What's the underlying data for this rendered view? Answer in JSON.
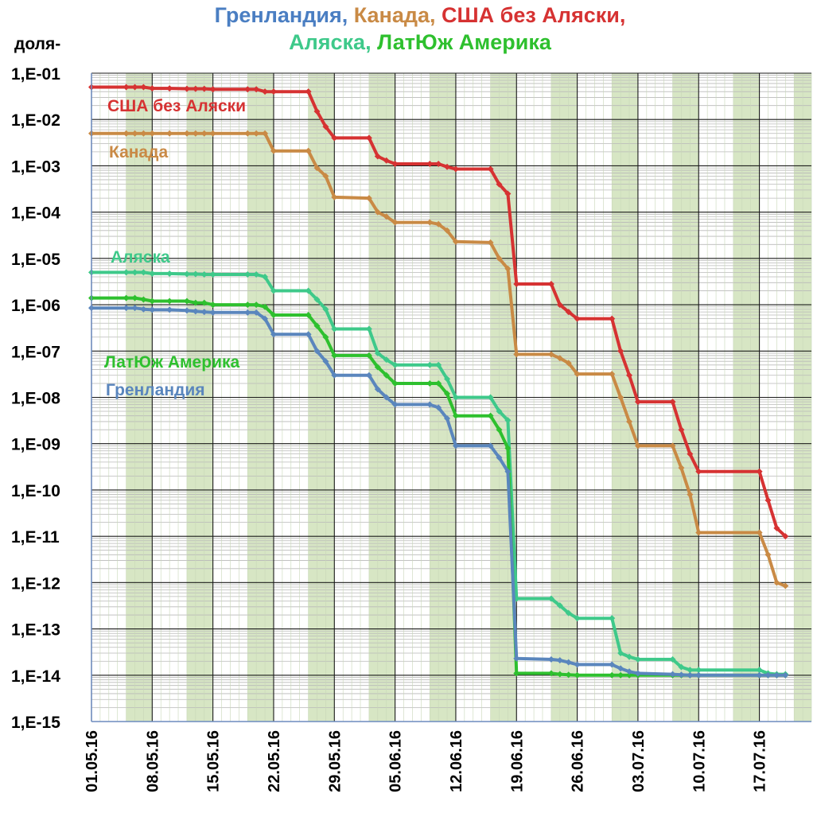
{
  "chart_data": {
    "type": "line",
    "title": {
      "line1": [
        {
          "text": "Гренландия",
          "color": "#4a7ec2"
        },
        {
          "text": ", ",
          "color": "#4a7ec2"
        },
        {
          "text": "Канада",
          "color": "#c98a45"
        },
        {
          "text": ", ",
          "color": "#c98a45"
        },
        {
          "text": "США без Аляски",
          "color": "#d63232"
        },
        {
          "text": ",",
          "color": "#d63232"
        }
      ],
      "line2": [
        {
          "text": "Аляска",
          "color": "#3ec98a"
        },
        {
          "text": ", ",
          "color": "#3ec98a"
        },
        {
          "text": "ЛатЮж Америка",
          "color": "#2ec02e"
        }
      ]
    },
    "ylabel": "доля-",
    "xlabel": "",
    "y_scale": "log",
    "ylim": [
      1e-15,
      0.1
    ],
    "xlim": [
      "2016-05-01",
      "2016-07-23"
    ],
    "y_ticks": [
      "1,E-01",
      "1,E-02",
      "1,E-03",
      "1,E-04",
      "1,E-05",
      "1,E-06",
      "1,E-07",
      "1,E-08",
      "1,E-09",
      "1,E-10",
      "1,E-11",
      "1,E-12",
      "1,E-13",
      "1,E-14",
      "1,E-15"
    ],
    "x_ticks": [
      "01.05.16",
      "08.05.16",
      "15.05.16",
      "22.05.16",
      "29.05.16",
      "05.06.16",
      "12.06.16",
      "19.06.16",
      "26.06.16",
      "03.07.16",
      "10.07.16",
      "17.07.16"
    ],
    "x_tick_dates": [
      "2016-05-01",
      "2016-05-08",
      "2016-05-15",
      "2016-05-22",
      "2016-05-29",
      "2016-06-05",
      "2016-06-12",
      "2016-06-19",
      "2016-06-26",
      "2016-07-03",
      "2016-07-10",
      "2016-07-17"
    ],
    "shaded_date_ranges": [
      [
        "2016-05-05",
        "2016-05-08"
      ],
      [
        "2016-05-12",
        "2016-05-15"
      ],
      [
        "2016-05-19",
        "2016-05-22"
      ],
      [
        "2016-05-26",
        "2016-05-29"
      ],
      [
        "2016-06-02",
        "2016-06-05"
      ],
      [
        "2016-06-09",
        "2016-06-12"
      ],
      [
        "2016-06-16",
        "2016-06-19"
      ],
      [
        "2016-06-23",
        "2016-06-26"
      ],
      [
        "2016-06-30",
        "2016-07-03"
      ],
      [
        "2016-07-07",
        "2016-07-10"
      ],
      [
        "2016-07-14",
        "2016-07-17"
      ],
      [
        "2016-07-21",
        "2016-07-23"
      ]
    ],
    "grid": true,
    "series": [
      {
        "name": "США без Аляски",
        "color": "#d63232",
        "points": [
          [
            "2016-05-01",
            0.05
          ],
          [
            "2016-05-05",
            0.05
          ],
          [
            "2016-05-06",
            0.05
          ],
          [
            "2016-05-07",
            0.05
          ],
          [
            "2016-05-08",
            0.047
          ],
          [
            "2016-05-10",
            0.047
          ],
          [
            "2016-05-12",
            0.046
          ],
          [
            "2016-05-13",
            0.046
          ],
          [
            "2016-05-14",
            0.046
          ],
          [
            "2016-05-15",
            0.045
          ],
          [
            "2016-05-19",
            0.045
          ],
          [
            "2016-05-20",
            0.045
          ],
          [
            "2016-05-21",
            0.04
          ],
          [
            "2016-05-22",
            0.04
          ],
          [
            "2016-05-26",
            0.04
          ],
          [
            "2016-05-27",
            0.015
          ],
          [
            "2016-05-28",
            0.007
          ],
          [
            "2016-05-29",
            0.004
          ],
          [
            "2016-06-02",
            0.004
          ],
          [
            "2016-06-03",
            0.0016
          ],
          [
            "2016-06-04",
            0.0013
          ],
          [
            "2016-06-05",
            0.0011
          ],
          [
            "2016-06-09",
            0.0011
          ],
          [
            "2016-06-10",
            0.0011
          ],
          [
            "2016-06-11",
            0.00095
          ],
          [
            "2016-06-12",
            0.00085
          ],
          [
            "2016-06-16",
            0.00085
          ],
          [
            "2016-06-17",
            0.0004
          ],
          [
            "2016-06-18",
            0.00025
          ],
          [
            "2016-06-19",
            2.8e-06
          ],
          [
            "2016-06-23",
            2.8e-06
          ],
          [
            "2016-06-24",
            1e-06
          ],
          [
            "2016-06-25",
            7e-07
          ],
          [
            "2016-06-26",
            5e-07
          ],
          [
            "2016-06-30",
            5e-07
          ],
          [
            "2016-07-01",
            1e-07
          ],
          [
            "2016-07-02",
            3e-08
          ],
          [
            "2016-07-03",
            8e-09
          ],
          [
            "2016-07-07",
            8e-09
          ],
          [
            "2016-07-08",
            2e-09
          ],
          [
            "2016-07-09",
            6e-10
          ],
          [
            "2016-07-10",
            2.5e-10
          ],
          [
            "2016-07-17",
            2.5e-10
          ],
          [
            "2016-07-18",
            6e-11
          ],
          [
            "2016-07-19",
            1.5e-11
          ],
          [
            "2016-07-20",
            1e-11
          ]
        ]
      },
      {
        "name": "Канада",
        "color": "#c98a45",
        "points": [
          [
            "2016-05-01",
            0.005
          ],
          [
            "2016-05-05",
            0.005
          ],
          [
            "2016-05-06",
            0.005
          ],
          [
            "2016-05-07",
            0.005
          ],
          [
            "2016-05-08",
            0.005
          ],
          [
            "2016-05-10",
            0.005
          ],
          [
            "2016-05-12",
            0.005
          ],
          [
            "2016-05-13",
            0.005
          ],
          [
            "2016-05-14",
            0.005
          ],
          [
            "2016-05-15",
            0.005
          ],
          [
            "2016-05-19",
            0.005
          ],
          [
            "2016-05-20",
            0.005
          ],
          [
            "2016-05-21",
            0.005
          ],
          [
            "2016-05-22",
            0.0021
          ],
          [
            "2016-05-26",
            0.0021
          ],
          [
            "2016-05-27",
            0.0009
          ],
          [
            "2016-05-28",
            0.0006
          ],
          [
            "2016-05-29",
            0.00021
          ],
          [
            "2016-06-02",
            0.0002
          ],
          [
            "2016-06-03",
            0.0001
          ],
          [
            "2016-06-04",
            8e-05
          ],
          [
            "2016-06-05",
            6e-05
          ],
          [
            "2016-06-09",
            6e-05
          ],
          [
            "2016-06-10",
            5.5e-05
          ],
          [
            "2016-06-11",
            4e-05
          ],
          [
            "2016-06-12",
            2.3e-05
          ],
          [
            "2016-06-16",
            2.2e-05
          ],
          [
            "2016-06-17",
            1e-05
          ],
          [
            "2016-06-18",
            6e-06
          ],
          [
            "2016-06-19",
            8.5e-08
          ],
          [
            "2016-06-23",
            8.5e-08
          ],
          [
            "2016-06-24",
            7e-08
          ],
          [
            "2016-06-25",
            5.5e-08
          ],
          [
            "2016-06-26",
            3.2e-08
          ],
          [
            "2016-06-30",
            3.2e-08
          ],
          [
            "2016-07-01",
            1e-08
          ],
          [
            "2016-07-02",
            3e-09
          ],
          [
            "2016-07-03",
            9e-10
          ],
          [
            "2016-07-07",
            9e-10
          ],
          [
            "2016-07-08",
            3e-10
          ],
          [
            "2016-07-09",
            8e-11
          ],
          [
            "2016-07-10",
            1.2e-11
          ],
          [
            "2016-07-17",
            1.2e-11
          ],
          [
            "2016-07-18",
            4e-12
          ],
          [
            "2016-07-19",
            1e-12
          ],
          [
            "2016-07-20",
            8.5e-13
          ]
        ]
      },
      {
        "name": "Аляска",
        "color": "#3ec98a",
        "points": [
          [
            "2016-05-01",
            5e-06
          ],
          [
            "2016-05-05",
            5e-06
          ],
          [
            "2016-05-06",
            5e-06
          ],
          [
            "2016-05-07",
            5e-06
          ],
          [
            "2016-05-08",
            4.7e-06
          ],
          [
            "2016-05-10",
            4.7e-06
          ],
          [
            "2016-05-12",
            4.6e-06
          ],
          [
            "2016-05-13",
            4.6e-06
          ],
          [
            "2016-05-14",
            4.5e-06
          ],
          [
            "2016-05-15",
            4.5e-06
          ],
          [
            "2016-05-19",
            4.5e-06
          ],
          [
            "2016-05-20",
            4.5e-06
          ],
          [
            "2016-05-21",
            4e-06
          ],
          [
            "2016-05-22",
            2e-06
          ],
          [
            "2016-05-26",
            2e-06
          ],
          [
            "2016-05-27",
            1.3e-06
          ],
          [
            "2016-05-28",
            8e-07
          ],
          [
            "2016-05-29",
            3e-07
          ],
          [
            "2016-06-02",
            3e-07
          ],
          [
            "2016-06-03",
            9e-08
          ],
          [
            "2016-06-04",
            6.5e-08
          ],
          [
            "2016-06-05",
            5e-08
          ],
          [
            "2016-06-09",
            5e-08
          ],
          [
            "2016-06-10",
            5e-08
          ],
          [
            "2016-06-11",
            2.5e-08
          ],
          [
            "2016-06-12",
            1e-08
          ],
          [
            "2016-06-16",
            1e-08
          ],
          [
            "2016-06-17",
            5e-09
          ],
          [
            "2016-06-18",
            3.2e-09
          ],
          [
            "2016-06-19",
            4.5e-13
          ],
          [
            "2016-06-23",
            4.5e-13
          ],
          [
            "2016-06-24",
            3.2e-13
          ],
          [
            "2016-06-25",
            2.2e-13
          ],
          [
            "2016-06-26",
            1.7e-13
          ],
          [
            "2016-06-30",
            1.7e-13
          ],
          [
            "2016-07-01",
            3e-14
          ],
          [
            "2016-07-02",
            2.5e-14
          ],
          [
            "2016-07-03",
            2.2e-14
          ],
          [
            "2016-07-07",
            2.2e-14
          ],
          [
            "2016-07-08",
            1.5e-14
          ],
          [
            "2016-07-09",
            1.3e-14
          ],
          [
            "2016-07-10",
            1.3e-14
          ],
          [
            "2016-07-17",
            1.3e-14
          ],
          [
            "2016-07-18",
            1.1e-14
          ],
          [
            "2016-07-19",
            1.05e-14
          ],
          [
            "2016-07-20",
            1.05e-14
          ]
        ]
      },
      {
        "name": "ЛатЮж Америка",
        "color": "#2ec02e",
        "points": [
          [
            "2016-05-01",
            1.4e-06
          ],
          [
            "2016-05-05",
            1.4e-06
          ],
          [
            "2016-05-06",
            1.4e-06
          ],
          [
            "2016-05-07",
            1.3e-06
          ],
          [
            "2016-05-08",
            1.2e-06
          ],
          [
            "2016-05-10",
            1.2e-06
          ],
          [
            "2016-05-12",
            1.2e-06
          ],
          [
            "2016-05-13",
            1.1e-06
          ],
          [
            "2016-05-14",
            1.1e-06
          ],
          [
            "2016-05-15",
            1e-06
          ],
          [
            "2016-05-19",
            1e-06
          ],
          [
            "2016-05-20",
            1e-06
          ],
          [
            "2016-05-21",
            9e-07
          ],
          [
            "2016-05-22",
            6e-07
          ],
          [
            "2016-05-26",
            6e-07
          ],
          [
            "2016-05-27",
            3.5e-07
          ],
          [
            "2016-05-28",
            2e-07
          ],
          [
            "2016-05-29",
            8e-08
          ],
          [
            "2016-06-02",
            8e-08
          ],
          [
            "2016-06-03",
            4.5e-08
          ],
          [
            "2016-06-04",
            3e-08
          ],
          [
            "2016-06-05",
            2e-08
          ],
          [
            "2016-06-09",
            2e-08
          ],
          [
            "2016-06-10",
            2e-08
          ],
          [
            "2016-06-11",
            1.2e-08
          ],
          [
            "2016-06-12",
            4e-09
          ],
          [
            "2016-06-16",
            4e-09
          ],
          [
            "2016-06-17",
            2e-09
          ],
          [
            "2016-06-18",
            8e-10
          ],
          [
            "2016-06-19",
            1.1e-14
          ],
          [
            "2016-06-23",
            1.1e-14
          ],
          [
            "2016-06-24",
            1.05e-14
          ],
          [
            "2016-06-25",
            1.02e-14
          ],
          [
            "2016-06-26",
            1e-14
          ],
          [
            "2016-06-30",
            1e-14
          ],
          [
            "2016-07-01",
            1e-14
          ],
          [
            "2016-07-02",
            1e-14
          ],
          [
            "2016-07-03",
            1e-14
          ],
          [
            "2016-07-07",
            1e-14
          ],
          [
            "2016-07-08",
            1e-14
          ],
          [
            "2016-07-09",
            1e-14
          ],
          [
            "2016-07-10",
            1e-14
          ],
          [
            "2016-07-17",
            1e-14
          ],
          [
            "2016-07-18",
            1e-14
          ],
          [
            "2016-07-19",
            1e-14
          ],
          [
            "2016-07-20",
            1e-14
          ]
        ]
      },
      {
        "name": "Гренландия",
        "color": "#5a86bd",
        "points": [
          [
            "2016-05-01",
            8.5e-07
          ],
          [
            "2016-05-05",
            8.5e-07
          ],
          [
            "2016-05-06",
            8.5e-07
          ],
          [
            "2016-05-07",
            8e-07
          ],
          [
            "2016-05-08",
            7.8e-07
          ],
          [
            "2016-05-10",
            7.8e-07
          ],
          [
            "2016-05-12",
            7.5e-07
          ],
          [
            "2016-05-13",
            7.2e-07
          ],
          [
            "2016-05-14",
            7e-07
          ],
          [
            "2016-05-15",
            6.8e-07
          ],
          [
            "2016-05-19",
            6.8e-07
          ],
          [
            "2016-05-20",
            6.8e-07
          ],
          [
            "2016-05-21",
            5e-07
          ],
          [
            "2016-05-22",
            2.3e-07
          ],
          [
            "2016-05-26",
            2.3e-07
          ],
          [
            "2016-05-27",
            1e-07
          ],
          [
            "2016-05-28",
            6e-08
          ],
          [
            "2016-05-29",
            3e-08
          ],
          [
            "2016-06-02",
            3e-08
          ],
          [
            "2016-06-03",
            1.5e-08
          ],
          [
            "2016-06-04",
            1e-08
          ],
          [
            "2016-06-05",
            7e-09
          ],
          [
            "2016-06-09",
            7e-09
          ],
          [
            "2016-06-10",
            6e-09
          ],
          [
            "2016-06-11",
            3.5e-09
          ],
          [
            "2016-06-12",
            9e-10
          ],
          [
            "2016-06-16",
            9e-10
          ],
          [
            "2016-06-17",
            5e-10
          ],
          [
            "2016-06-18",
            2.5e-10
          ],
          [
            "2016-06-19",
            2.3e-14
          ],
          [
            "2016-06-23",
            2.2e-14
          ],
          [
            "2016-06-24",
            2.1e-14
          ],
          [
            "2016-06-25",
            1.9e-14
          ],
          [
            "2016-06-26",
            1.7e-14
          ],
          [
            "2016-06-30",
            1.7e-14
          ],
          [
            "2016-07-01",
            1.4e-14
          ],
          [
            "2016-07-02",
            1.2e-14
          ],
          [
            "2016-07-03",
            1.1e-14
          ],
          [
            "2016-07-07",
            1.05e-14
          ],
          [
            "2016-07-08",
            1.02e-14
          ],
          [
            "2016-07-09",
            1e-14
          ],
          [
            "2016-07-10",
            1e-14
          ],
          [
            "2016-07-17",
            1e-14
          ],
          [
            "2016-07-18",
            1e-14
          ],
          [
            "2016-07-19",
            1e-14
          ],
          [
            "2016-07-20",
            1e-14
          ]
        ]
      }
    ],
    "series_labels": [
      {
        "text": "США без Аляски",
        "color": "#d63232"
      },
      {
        "text": "Канада",
        "color": "#c98a45"
      },
      {
        "text": "Аляска",
        "color": "#3ec98a"
      },
      {
        "text": "ЛатЮж Америка",
        "color": "#2ec02e"
      },
      {
        "text": "Гренландия",
        "color": "#5a86bd"
      }
    ]
  }
}
